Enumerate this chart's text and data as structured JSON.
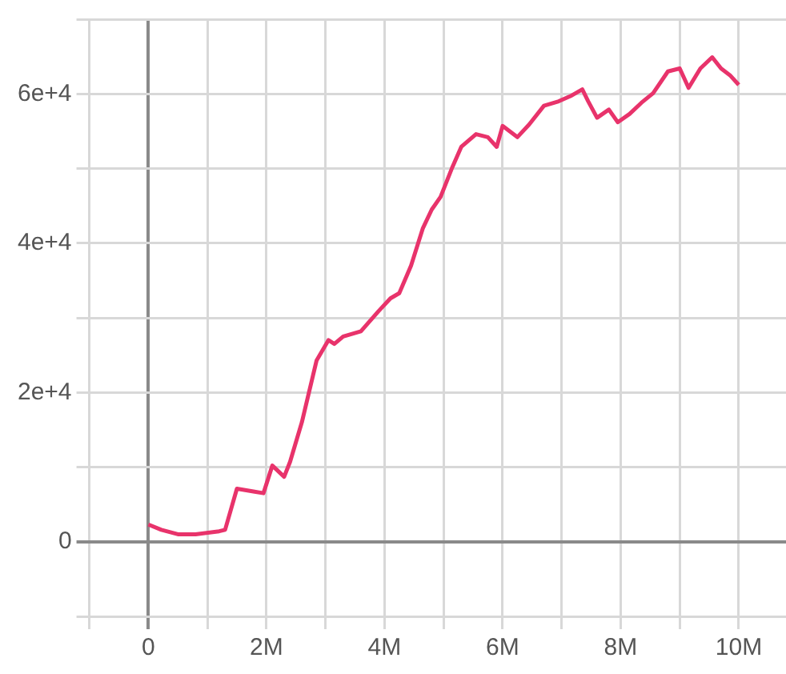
{
  "chart_data": {
    "type": "line",
    "x": [
      0,
      220000,
      500000,
      800000,
      1200000,
      1300000,
      1500000,
      1800000,
      1950000,
      2100000,
      2300000,
      2400000,
      2600000,
      2850000,
      3050000,
      3150000,
      3300000,
      3600000,
      3900000,
      4100000,
      4250000,
      4450000,
      4650000,
      4800000,
      4950000,
      5150000,
      5300000,
      5550000,
      5750000,
      5900000,
      6000000,
      6250000,
      6450000,
      6700000,
      6950000,
      7150000,
      7350000,
      7450000,
      7600000,
      7800000,
      7950000,
      8150000,
      8350000,
      8550000,
      8800000,
      9000000,
      9150000,
      9350000,
      9550000,
      9700000,
      9850000,
      10000000
    ],
    "series": [
      {
        "color": "#e8336b",
        "values": [
          2300,
          1600,
          1000,
          1000,
          1400,
          1600,
          7100,
          6700,
          6500,
          10200,
          8700,
          10700,
          16000,
          24300,
          27000,
          26500,
          27500,
          28200,
          30900,
          32600,
          33300,
          37000,
          42000,
          44500,
          46200,
          50200,
          52900,
          54600,
          54200,
          52900,
          55700,
          54200,
          55900,
          58400,
          59000,
          59700,
          60600,
          59000,
          56800,
          57900,
          56200,
          57300,
          58800,
          60100,
          63000,
          63400,
          60800,
          63400,
          64900,
          63400,
          62500,
          61200
        ]
      }
    ],
    "xlim": [
      -1000000,
      10800000
    ],
    "xticks": [
      {
        "value": -1000000,
        "label": null
      },
      {
        "value": 0,
        "label": "0"
      },
      {
        "value": 1000000,
        "label": null
      },
      {
        "value": 2000000,
        "label": "2M"
      },
      {
        "value": 3000000,
        "label": null
      },
      {
        "value": 4000000,
        "label": "4M"
      },
      {
        "value": 5000000,
        "label": null
      },
      {
        "value": 6000000,
        "label": "6M"
      },
      {
        "value": 7000000,
        "label": null
      },
      {
        "value": 8000000,
        "label": "8M"
      },
      {
        "value": 9000000,
        "label": null
      },
      {
        "value": 10000000,
        "label": "10M"
      }
    ],
    "ylim": [
      -10000,
      70000
    ],
    "yticks": [
      {
        "value": -10000,
        "label": null
      },
      {
        "value": 0,
        "label": "0"
      },
      {
        "value": 10000,
        "label": null
      },
      {
        "value": 20000,
        "label": "2e+4"
      },
      {
        "value": 30000,
        "label": null
      },
      {
        "value": 40000,
        "label": "4e+4"
      },
      {
        "value": 50000,
        "label": null
      },
      {
        "value": 60000,
        "label": "6e+4"
      },
      {
        "value": 70000,
        "label": null
      }
    ],
    "grid": true,
    "legend": false,
    "marker": "none",
    "line_style": "solid"
  }
}
